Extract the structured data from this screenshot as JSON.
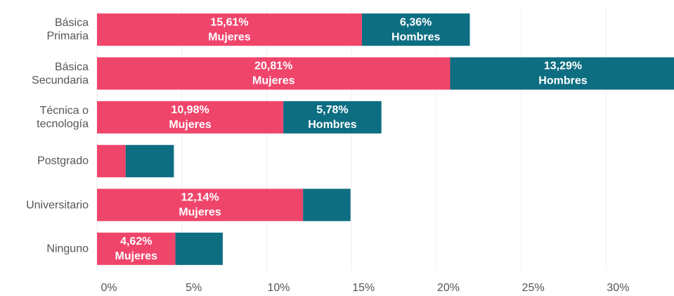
{
  "chart_data": {
    "type": "stacked_barh",
    "categories": [
      "Básica\nPrimaria",
      "Básica\nSecundaria",
      "Técnica o\ntecnología",
      "Postgrado",
      "Universitario",
      "Ninguno"
    ],
    "series": [
      {
        "name": "Mujeres",
        "color": "#f0456b",
        "values": [
          15.61,
          20.81,
          10.98,
          1.69,
          12.14,
          4.62
        ],
        "value_labels": [
          "15,61%",
          "20,81%",
          "10,98%",
          null,
          "12,14%",
          "4,62%"
        ]
      },
      {
        "name": "Hombres",
        "color": "#0d6e82",
        "values": [
          6.36,
          13.29,
          5.78,
          2.84,
          2.8,
          2.79
        ],
        "value_labels": [
          "6,36%",
          "13,29%",
          "5,78%",
          null,
          null,
          null
        ]
      }
    ],
    "xlim": [
      0,
      34
    ],
    "xticks": [
      {
        "value": 0,
        "label": "0%"
      },
      {
        "value": 5,
        "label": "5%"
      },
      {
        "value": 10,
        "label": "10%"
      },
      {
        "value": 15,
        "label": "15%"
      },
      {
        "value": 20,
        "label": "20%"
      },
      {
        "value": 25,
        "label": "25%"
      },
      {
        "value": 30,
        "label": "30%"
      }
    ],
    "grid": true
  }
}
